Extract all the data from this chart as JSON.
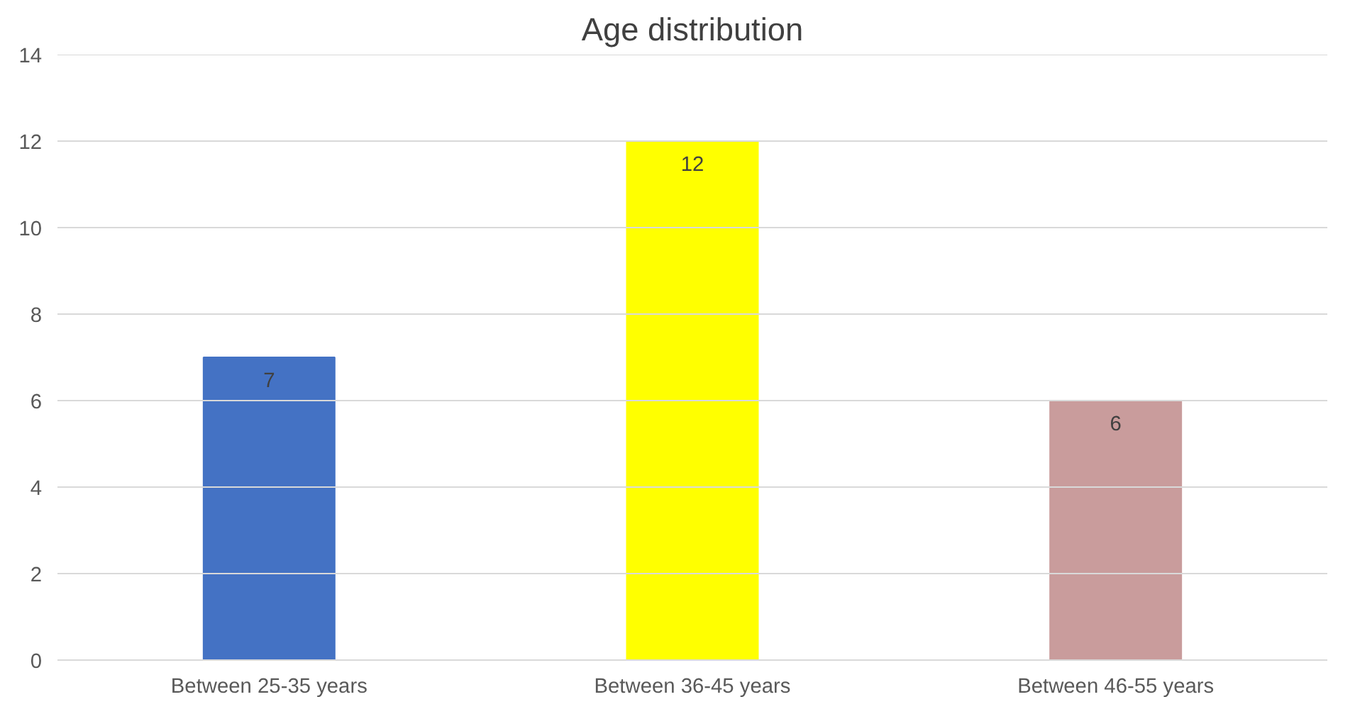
{
  "chart_data": {
    "type": "bar",
    "title": "Age distribution",
    "categories": [
      "Between 25-35 years",
      "Between 36-45 years",
      "Between 46-55 years"
    ],
    "values": [
      7,
      12,
      6
    ],
    "colors": [
      "#4472c4",
      "#ffff00",
      "#c99c9c"
    ],
    "ylim": [
      0,
      14
    ],
    "yticks": [
      0,
      2,
      4,
      6,
      8,
      10,
      12,
      14
    ],
    "grid": "y",
    "data_labels": true
  }
}
